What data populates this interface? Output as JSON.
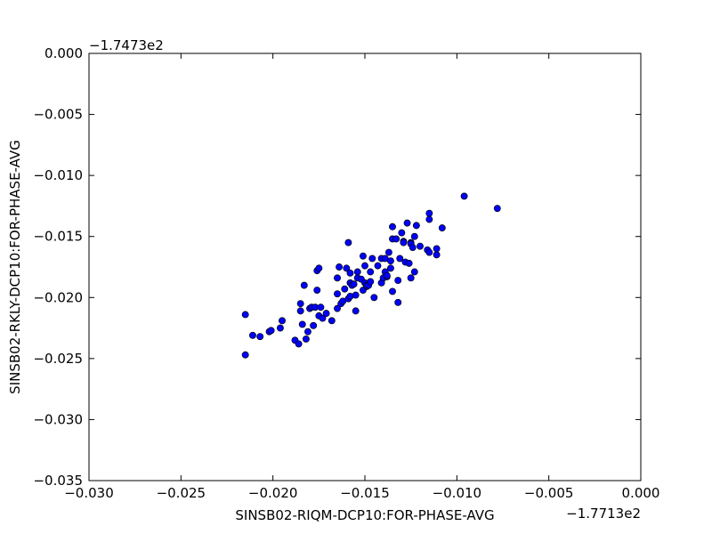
{
  "chart_data": {
    "type": "scatter",
    "xlabel": "SINSB02-RIQM-DCP10:FOR-PHASE-AVG",
    "ylabel": "SINSB02-RKLY-DCP10:FOR-PHASE-AVG",
    "x_offset_label": "−1.7713e2",
    "y_offset_label": "−1.7473e2",
    "color": "#0000ff",
    "edgecolor": "#000000",
    "xlim": [
      -0.03,
      0.0
    ],
    "ylim": [
      -0.035,
      0.0
    ],
    "xticks": [
      {
        "value": -0.03,
        "label": "−0.030"
      },
      {
        "value": -0.025,
        "label": "−0.025"
      },
      {
        "value": -0.02,
        "label": "−0.020"
      },
      {
        "value": -0.015,
        "label": "−0.015"
      },
      {
        "value": -0.01,
        "label": "−0.010"
      },
      {
        "value": -0.005,
        "label": "−0.005"
      },
      {
        "value": 0,
        "label": "0.000"
      }
    ],
    "yticks": [
      {
        "value": -0.035,
        "label": "−0.035"
      },
      {
        "value": -0.03,
        "label": "−0.030"
      },
      {
        "value": -0.025,
        "label": "−0.025"
      },
      {
        "value": -0.02,
        "label": "−0.020"
      },
      {
        "value": -0.015,
        "label": "−0.015"
      },
      {
        "value": -0.01,
        "label": "−0.010"
      },
      {
        "value": -0.005,
        "label": "−0.005"
      },
      {
        "value": 0,
        "label": "0.000"
      }
    ],
    "x": [
      -0.0215,
      -0.0215,
      -0.0211,
      -0.0207,
      -0.0202,
      -0.0201,
      -0.0196,
      -0.0195,
      -0.0188,
      -0.0186,
      -0.0185,
      -0.0185,
      -0.0183,
      -0.0184,
      -0.0182,
      -0.0181,
      -0.018,
      -0.0179,
      -0.0178,
      -0.0177,
      -0.0176,
      -0.0176,
      -0.0175,
      -0.0175,
      -0.0174,
      -0.0173,
      -0.0171,
      -0.0168,
      -0.0165,
      -0.0165,
      -0.0165,
      -0.0164,
      -0.0163,
      -0.0162,
      -0.0161,
      -0.016,
      -0.0159,
      -0.0159,
      -0.0158,
      -0.0158,
      -0.0158,
      -0.0157,
      -0.0156,
      -0.0155,
      -0.0155,
      -0.0154,
      -0.0154,
      -0.0152,
      -0.0151,
      -0.0151,
      -0.015,
      -0.015,
      -0.0149,
      -0.0149,
      -0.0148,
      -0.0147,
      -0.0147,
      -0.0146,
      -0.0145,
      -0.0143,
      -0.0141,
      -0.0141,
      -0.014,
      -0.0139,
      -0.0139,
      -0.0138,
      -0.0138,
      -0.0137,
      -0.0136,
      -0.0136,
      -0.0135,
      -0.0135,
      -0.0135,
      -0.0133,
      -0.0132,
      -0.0132,
      -0.0131,
      -0.013,
      -0.0129,
      -0.0129,
      -0.0128,
      -0.0127,
      -0.0126,
      -0.0125,
      -0.0125,
      -0.0125,
      -0.0124,
      -0.0123,
      -0.0123,
      -0.0122,
      -0.012,
      -0.0116,
      -0.0115,
      -0.0115,
      -0.0115,
      -0.0111,
      -0.0111,
      -0.0108,
      -0.0096,
      -0.0078
    ],
    "values": [
      -0.0214,
      -0.0247,
      -0.0231,
      -0.0232,
      -0.0228,
      -0.0227,
      -0.0225,
      -0.0219,
      -0.0235,
      -0.0238,
      -0.0205,
      -0.0211,
      -0.019,
      -0.0222,
      -0.0234,
      -0.0228,
      -0.0209,
      -0.0208,
      -0.0223,
      -0.0208,
      -0.0194,
      -0.0178,
      -0.0215,
      -0.0176,
      -0.0208,
      -0.0217,
      -0.0213,
      -0.0219,
      -0.0184,
      -0.0197,
      -0.0209,
      -0.0175,
      -0.0205,
      -0.0203,
      -0.0193,
      -0.0176,
      -0.0155,
      -0.0201,
      -0.018,
      -0.0188,
      -0.0199,
      -0.019,
      -0.0189,
      -0.0211,
      -0.0198,
      -0.0184,
      -0.0179,
      -0.0185,
      -0.0166,
      -0.0194,
      -0.0174,
      -0.0188,
      -0.0191,
      -0.019,
      -0.019,
      -0.0179,
      -0.0187,
      -0.0168,
      -0.02,
      -0.0174,
      -0.0168,
      -0.0188,
      -0.0184,
      -0.0168,
      -0.0179,
      -0.0183,
      -0.0182,
      -0.0163,
      -0.0176,
      -0.017,
      -0.0195,
      -0.0152,
      -0.0142,
      -0.0152,
      -0.0204,
      -0.0186,
      -0.0168,
      -0.0147,
      -0.0154,
      -0.0155,
      -0.0171,
      -0.0139,
      -0.0172,
      -0.0155,
      -0.0156,
      -0.0184,
      -0.0159,
      -0.015,
      -0.0179,
      -0.0141,
      -0.0158,
      -0.0161,
      -0.0131,
      -0.0136,
      -0.0163,
      -0.0165,
      -0.016,
      -0.0143,
      -0.0117,
      -0.0127
    ]
  }
}
